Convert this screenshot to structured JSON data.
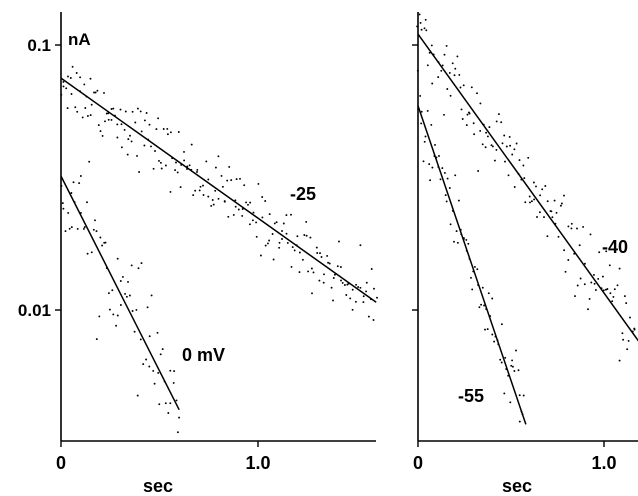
{
  "chart_data": [
    {
      "type": "scatter",
      "title": "",
      "xlabel": "sec",
      "ylabel": "nA",
      "yscale": "log",
      "xlim": [
        0,
        1.6
      ],
      "ylim": [
        0.0033,
        0.12
      ],
      "x_ticks": [
        {
          "value": 0,
          "label": "0"
        },
        {
          "value": 1.0,
          "label": "1.0"
        }
      ],
      "y_ticks": [
        {
          "value": 0.1,
          "label": "0.1"
        },
        {
          "value": 0.01,
          "label": "0.01"
        }
      ],
      "unit_label": "nA",
      "series": [
        {
          "name": "-25",
          "fit": {
            "x": [
              0,
              1.6
            ],
            "y": [
              0.075,
              0.0107
            ]
          },
          "points": {
            "x_range": [
              0,
              1.6
            ],
            "count": 210,
            "noise": 0.06
          }
        },
        {
          "name": "0 mV",
          "fit": {
            "x": [
              0,
              0.6
            ],
            "y": [
              0.032,
              0.0042
            ]
          },
          "points": {
            "x_range": [
              0,
              0.6
            ],
            "count": 75,
            "noise": 0.1
          }
        }
      ]
    },
    {
      "type": "scatter",
      "title": "",
      "xlabel": "sec",
      "ylabel": "",
      "yscale": "log",
      "xlim": [
        0,
        1.2
      ],
      "ylim": [
        0.0033,
        0.12
      ],
      "x_ticks": [
        {
          "value": 0,
          "label": "0"
        },
        {
          "value": 1.0,
          "label": "1.0"
        }
      ],
      "y_ticks": [
        {
          "value": 0.1,
          "label": ""
        },
        {
          "value": 0.01,
          "label": ""
        }
      ],
      "series": [
        {
          "name": "-40",
          "fit": {
            "x": [
              0,
              1.2
            ],
            "y": [
              0.11,
              0.0075
            ]
          },
          "points": {
            "x_range": [
              0,
              1.2
            ],
            "count": 150,
            "noise": 0.07
          }
        },
        {
          "name": "-55",
          "fit": {
            "x": [
              0,
              0.58
            ],
            "y": [
              0.059,
              0.0037
            ]
          },
          "points": {
            "x_range": [
              0,
              0.58
            ],
            "count": 80,
            "noise": 0.08
          }
        }
      ]
    }
  ]
}
